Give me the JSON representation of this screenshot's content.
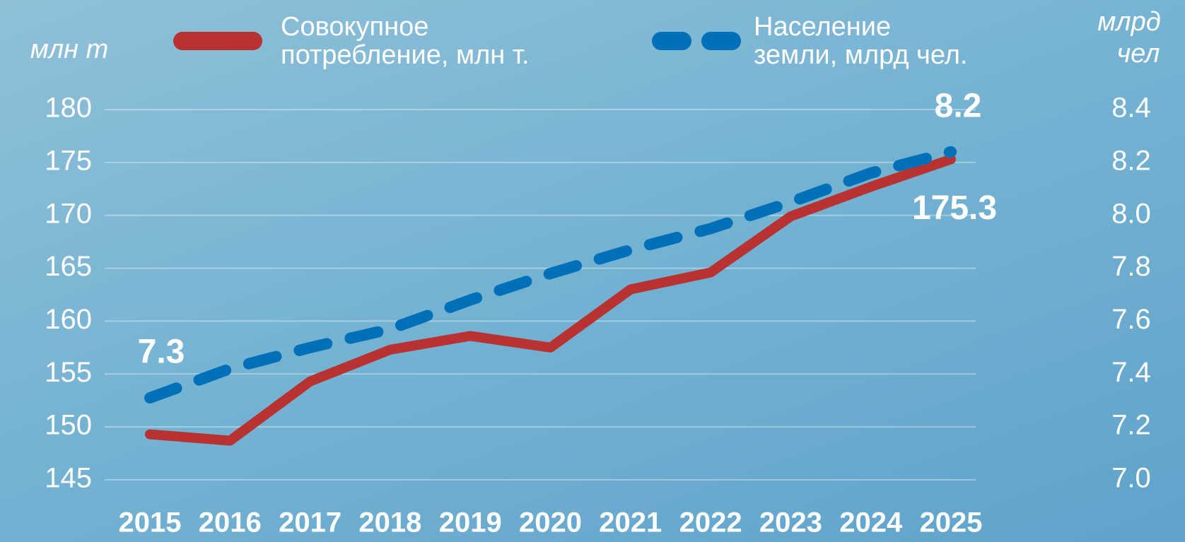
{
  "chart_data": {
    "type": "line",
    "y_label": "млн т",
    "y2_label": [
      "млрд",
      "чел"
    ],
    "x": [
      "2015",
      "2016",
      "2017",
      "2018",
      "2019",
      "2020",
      "2021",
      "2022",
      "2023",
      "2024",
      "2025"
    ],
    "series": [
      {
        "name": "Совокупное\nпотребление, млн т.",
        "color": "#b83232",
        "values": [
          149.3,
          148.7,
          154.3,
          157.3,
          158.6,
          157.5,
          163.0,
          164.6,
          169.9,
          172.7,
          175.3
        ]
      },
      {
        "name": "Население\nземли, млрд чел.",
        "color": "#0070b8",
        "axis": "y2",
        "dashed": true,
        "values": [
          7.31,
          7.42,
          7.5,
          7.57,
          7.68,
          7.78,
          7.87,
          7.95,
          8.05,
          8.16,
          8.24
        ],
        "value_labels": [
          "7.3",
          null,
          null,
          null,
          null,
          null,
          null,
          null,
          null,
          null,
          "8.2"
        ]
      }
    ],
    "ylim": [
      145,
      180
    ],
    "yticks": [
      145,
      150,
      155,
      160,
      165,
      170,
      175,
      180
    ],
    "y2lim": [
      7,
      8.4
    ],
    "y2ticks": [
      {
        "value": 7,
        "label": "7.0"
      },
      7.2,
      7.4,
      7.6,
      7.8,
      {
        "value": 8,
        "label": "8.0"
      },
      8.2,
      8.4
    ],
    "grid": true
  }
}
